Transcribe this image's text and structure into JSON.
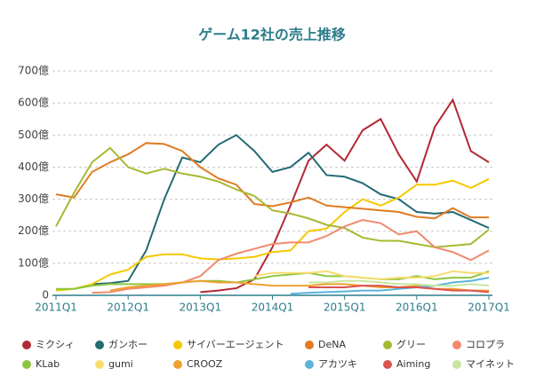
{
  "chart_data": {
    "type": "line",
    "title": "ゲーム12社の売上推移",
    "categories": [
      "2011Q1",
      null,
      null,
      null,
      "2012Q1",
      null,
      null,
      null,
      "2013Q1",
      null,
      null,
      null,
      "2014Q1",
      null,
      null,
      null,
      "2015Q1",
      null,
      null,
      null,
      "2016Q1",
      null,
      null,
      null,
      "2017Q1"
    ],
    "ylim": [
      0,
      700
    ],
    "yticks": [
      0,
      {
        "value": 100,
        "label": "100億"
      },
      {
        "value": 200,
        "label": "200億"
      },
      {
        "value": 300,
        "label": "300億"
      },
      {
        "value": 400,
        "label": "400億"
      },
      {
        "value": 500,
        "label": "500億"
      },
      {
        "value": 600,
        "label": "600億"
      },
      {
        "value": 700,
        "label": "700億"
      }
    ],
    "grid": true,
    "series": [
      {
        "name": "ミクシィ",
        "color": "#b22a35",
        "values": [
          null,
          null,
          null,
          null,
          null,
          null,
          null,
          null,
          10,
          15,
          22,
          50,
          150,
          280,
          420,
          470,
          420,
          515,
          550,
          440,
          355,
          525,
          610,
          450,
          415
        ]
      },
      {
        "name": "ガンホー",
        "color": "#236b73",
        "values": [
          null,
          null,
          35,
          38,
          45,
          140,
          300,
          430,
          415,
          470,
          500,
          450,
          385,
          400,
          445,
          375,
          370,
          350,
          315,
          300,
          260,
          255,
          260,
          235,
          210
        ]
      },
      {
        "name": "サイバーエージェント",
        "color": "#f5c800",
        "values": [
          15,
          20,
          35,
          65,
          80,
          120,
          128,
          128,
          115,
          112,
          115,
          120,
          135,
          140,
          200,
          208,
          260,
          300,
          280,
          305,
          345,
          345,
          358,
          335,
          363
        ]
      },
      {
        "name": "DeNA",
        "color": "#e07b22",
        "values": [
          315,
          305,
          385,
          415,
          440,
          475,
          472,
          450,
          400,
          365,
          345,
          285,
          278,
          290,
          305,
          280,
          275,
          270,
          265,
          260,
          245,
          240,
          272,
          243,
          243
        ]
      },
      {
        "name": "グリー",
        "color": "#a8b832",
        "values": [
          215,
          320,
          415,
          460,
          400,
          380,
          395,
          380,
          370,
          355,
          330,
          310,
          265,
          255,
          240,
          220,
          210,
          180,
          170,
          170,
          160,
          150,
          155,
          160,
          205
        ]
      },
      {
        "name": "コロプラ",
        "color": "#f08a6e",
        "values": [
          null,
          null,
          8,
          10,
          20,
          25,
          30,
          40,
          60,
          110,
          130,
          145,
          160,
          165,
          165,
          185,
          215,
          235,
          225,
          190,
          200,
          150,
          135,
          110,
          140
        ]
      },
      {
        "name": "KLab",
        "color": "#8cc63f",
        "values": [
          20,
          20,
          30,
          35,
          35,
          35,
          35,
          40,
          45,
          45,
          40,
          50,
          60,
          65,
          70,
          60,
          60,
          55,
          50,
          50,
          60,
          50,
          55,
          55,
          75
        ]
      },
      {
        "name": "gumi",
        "color": "#f7dc6f",
        "values": [
          null,
          null,
          null,
          null,
          null,
          null,
          null,
          null,
          null,
          null,
          null,
          60,
          70,
          70,
          70,
          75,
          60,
          55,
          50,
          55,
          55,
          60,
          75,
          70,
          70
        ]
      },
      {
        "name": "CROOZ",
        "color": "#f0a030",
        "values": [
          null,
          null,
          null,
          15,
          25,
          30,
          35,
          40,
          45,
          40,
          40,
          35,
          30,
          30,
          30,
          35,
          35,
          30,
          25,
          25,
          30,
          20,
          20,
          15,
          15
        ]
      },
      {
        "name": "アカツキ",
        "color": "#5ab4dc",
        "values": [
          null,
          null,
          null,
          null,
          null,
          null,
          null,
          null,
          null,
          null,
          null,
          null,
          null,
          5,
          8,
          10,
          12,
          15,
          15,
          20,
          25,
          30,
          40,
          45,
          55
        ]
      },
      {
        "name": "Aiming",
        "color": "#d9534f",
        "values": [
          null,
          null,
          null,
          null,
          null,
          null,
          null,
          null,
          null,
          null,
          null,
          null,
          null,
          null,
          25,
          25,
          25,
          30,
          30,
          25,
          25,
          20,
          15,
          15,
          10
        ]
      },
      {
        "name": "マイネット",
        "color": "#c8e6a0",
        "values": [
          null,
          null,
          null,
          null,
          null,
          null,
          null,
          null,
          null,
          null,
          null,
          null,
          null,
          null,
          40,
          40,
          45,
          45,
          40,
          35,
          35,
          30,
          30,
          35,
          30
        ]
      }
    ]
  }
}
